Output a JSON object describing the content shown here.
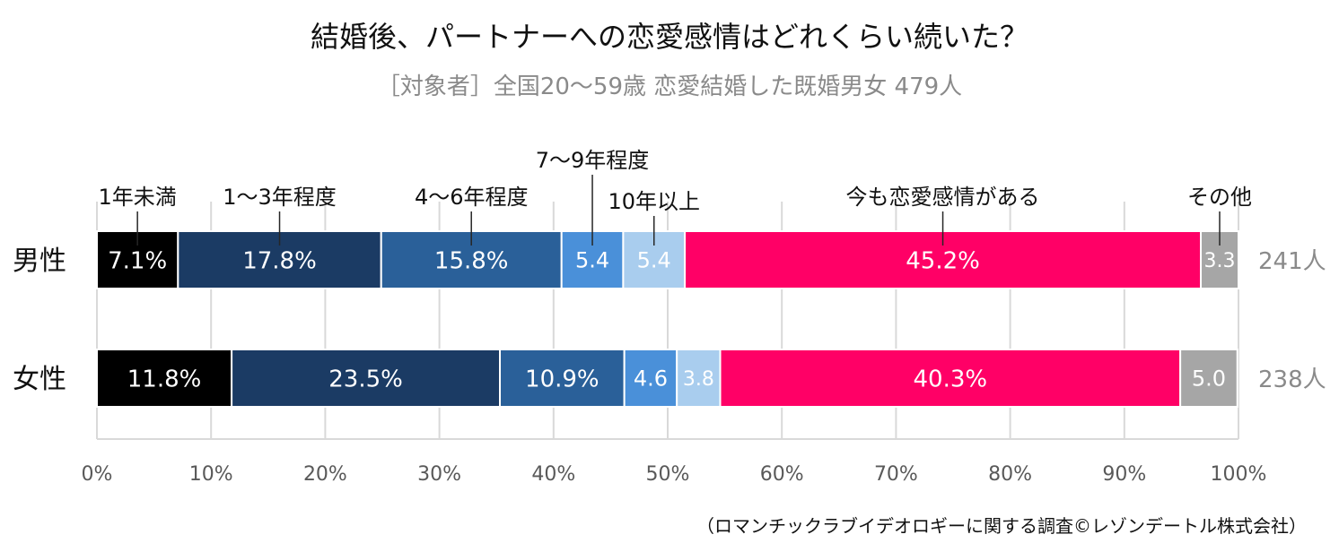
{
  "chart_data": {
    "type": "bar",
    "orientation": "horizontal",
    "stacked": true,
    "percent_stacked": true,
    "title": "結婚後、パートナーへの恋愛感情はどれくらい続いた？",
    "subtitle": "［対象者］全国20～59歳 恋愛結婚した既婚男女 479人",
    "categories": [
      "男性",
      "女性"
    ],
    "category_counts": [
      "241人",
      "238人"
    ],
    "series": [
      {
        "name": "1年未満",
        "color": "#000000",
        "text_color": "#ffffff",
        "values": [
          7.1,
          11.8
        ],
        "labels": [
          "7.1%",
          "11.8%"
        ]
      },
      {
        "name": "1～3年程度",
        "color": "#1b3b64",
        "text_color": "#ffffff",
        "values": [
          17.8,
          23.5
        ],
        "labels": [
          "17.8%",
          "23.5%"
        ]
      },
      {
        "name": "4～6年程度",
        "color": "#2a6099",
        "text_color": "#ffffff",
        "values": [
          15.8,
          10.9
        ],
        "labels": [
          "15.8%",
          "10.9%"
        ]
      },
      {
        "name": "7～9年程度",
        "color": "#4a90d9",
        "text_color": "#ffffff",
        "values": [
          5.4,
          4.6
        ],
        "labels": [
          "5.4",
          "4.6"
        ]
      },
      {
        "name": "10年以上",
        "color": "#a9cdee",
        "text_color": "#ffffff",
        "values": [
          5.4,
          3.8
        ],
        "labels": [
          "5.4",
          "3.8"
        ]
      },
      {
        "name": "今も恋愛感情がある",
        "color": "#ff0066",
        "text_color": "#ffffff",
        "values": [
          45.2,
          40.3
        ],
        "labels": [
          "45.2%",
          "40.3%"
        ]
      },
      {
        "name": "その他",
        "color": "#a6a6a6",
        "text_color": "#ffffff",
        "values": [
          3.3,
          5.0
        ],
        "labels": [
          "3.3",
          "5.0"
        ]
      }
    ],
    "xlim": [
      0,
      100
    ],
    "xticks": [
      0,
      10,
      20,
      30,
      40,
      50,
      60,
      70,
      80,
      90,
      100
    ],
    "xtick_labels": [
      "0%",
      "10%",
      "20%",
      "30%",
      "40%",
      "50%",
      "60%",
      "70%",
      "80%",
      "90%",
      "100%"
    ],
    "grid": true,
    "legend": "callout labels above the 男性 bar",
    "source": "（ロマンチックラブイデオロギーに関する調査©レゾンデートル株式会社）"
  }
}
